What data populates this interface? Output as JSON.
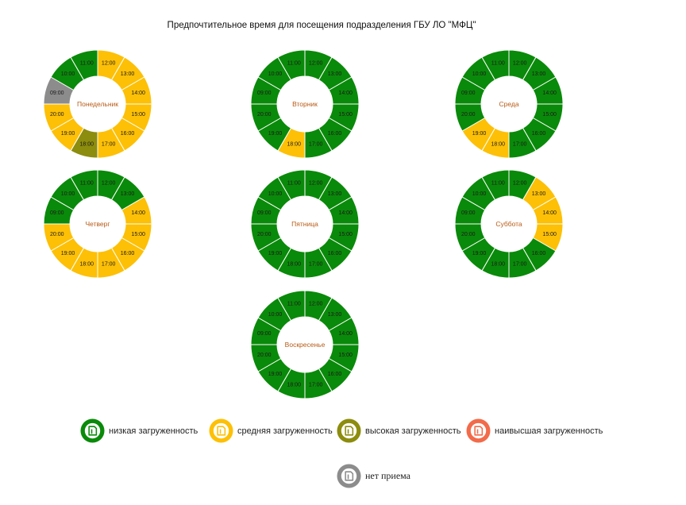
{
  "chart_data": {
    "type": "pie",
    "title": "Предпочтительное время для посещения подразделения ГБУ ЛО \"МФЦ\"",
    "hours": [
      "09:00",
      "10:00",
      "11:00",
      "12:00",
      "13:00",
      "14:00",
      "15:00",
      "16:00",
      "17:00",
      "18:00",
      "19:00",
      "20:00"
    ],
    "colors": {
      "low": "#0a8a0a",
      "medium": "#fdc006",
      "high": "#8c8c0e",
      "highest": "#f26b4a",
      "closed": "#8c8c8c"
    },
    "days": [
      {
        "name": "Понедельник",
        "load": [
          "closed",
          "low",
          "low",
          "medium",
          "medium",
          "medium",
          "medium",
          "medium",
          "medium",
          "high",
          "medium",
          "medium"
        ]
      },
      {
        "name": "Вторник",
        "load": [
          "low",
          "low",
          "low",
          "low",
          "low",
          "low",
          "low",
          "low",
          "low",
          "medium",
          "low",
          "low"
        ]
      },
      {
        "name": "Среда",
        "load": [
          "low",
          "low",
          "low",
          "low",
          "low",
          "low",
          "low",
          "low",
          "low",
          "medium",
          "medium",
          "low"
        ]
      },
      {
        "name": "Четверг",
        "load": [
          "low",
          "low",
          "low",
          "low",
          "low",
          "medium",
          "medium",
          "medium",
          "medium",
          "medium",
          "medium",
          "medium"
        ]
      },
      {
        "name": "Пятница",
        "load": [
          "low",
          "low",
          "low",
          "low",
          "low",
          "low",
          "low",
          "low",
          "low",
          "low",
          "low",
          "low"
        ]
      },
      {
        "name": "Суббота",
        "load": [
          "low",
          "low",
          "low",
          "low",
          "medium",
          "medium",
          "medium",
          "low",
          "low",
          "low",
          "low",
          "low"
        ]
      },
      {
        "name": "Воскресенье",
        "load": [
          "low",
          "low",
          "low",
          "low",
          "low",
          "low",
          "low",
          "low",
          "low",
          "low",
          "low",
          "low"
        ]
      }
    ],
    "legend": [
      {
        "key": "low",
        "label": "низкая загруженность"
      },
      {
        "key": "medium",
        "label": "средняя загруженность"
      },
      {
        "key": "high",
        "label": "высокая загруженность"
      },
      {
        "key": "highest",
        "label": "наивысшая загруженность"
      },
      {
        "key": "closed",
        "label": "нет приема"
      }
    ]
  }
}
